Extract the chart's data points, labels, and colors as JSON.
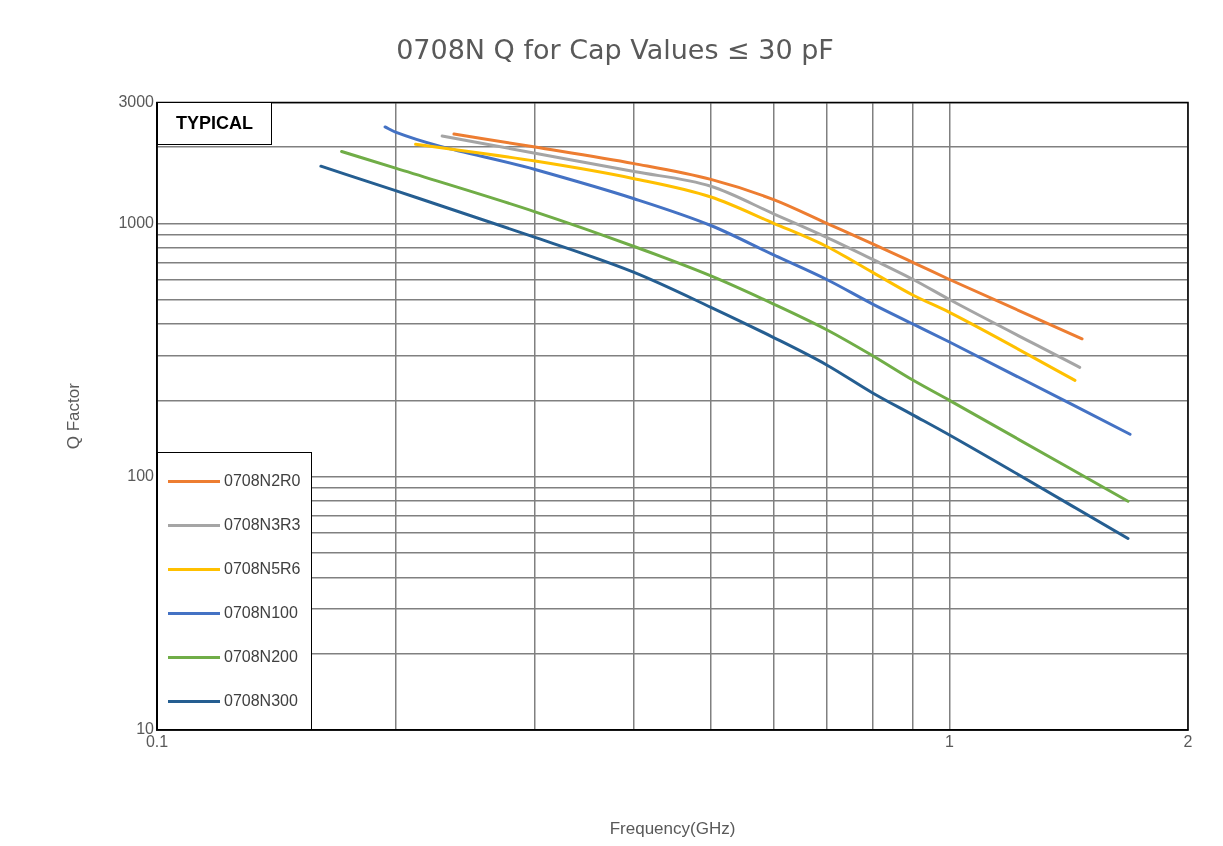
{
  "chart_data": {
    "type": "line",
    "title": "0708N Q for Cap Values ≤ 30 pF",
    "xlabel": "Frequency(GHz)",
    "ylabel": "Q Factor",
    "log": "xy",
    "grid": true,
    "legend": "bottom left",
    "marker": "none",
    "line_style": "solid",
    "annotations": [
      "TYPICAL"
    ],
    "xlim": [
      0.1,
      2
    ],
    "ylim": [
      10,
      3000
    ],
    "xticks": [
      0.1,
      {
        "value": 0.2,
        "label": null
      },
      {
        "value": 0.3,
        "label": null
      },
      {
        "value": 0.4,
        "label": null
      },
      {
        "value": 0.5,
        "label": null
      },
      {
        "value": 0.6,
        "label": null
      },
      {
        "value": 0.7,
        "label": null
      },
      {
        "value": 0.8,
        "label": null
      },
      {
        "value": 0.9,
        "label": null
      },
      1,
      2
    ],
    "yticks": [
      10,
      {
        "value": 20,
        "label": null
      },
      {
        "value": 30,
        "label": null
      },
      {
        "value": 40,
        "label": null
      },
      {
        "value": 50,
        "label": null
      },
      {
        "value": 60,
        "label": null
      },
      {
        "value": 70,
        "label": null
      },
      {
        "value": 80,
        "label": null
      },
      {
        "value": 90,
        "label": null
      },
      100,
      {
        "value": 200,
        "label": null
      },
      {
        "value": 300,
        "label": null
      },
      {
        "value": 400,
        "label": null
      },
      {
        "value": 500,
        "label": null
      },
      {
        "value": 600,
        "label": null
      },
      {
        "value": 700,
        "label": null
      },
      {
        "value": 800,
        "label": null
      },
      {
        "value": 900,
        "label": null
      },
      1000,
      {
        "value": 2000,
        "label": null
      },
      3000
    ],
    "series": [
      {
        "name": "0708N2R0",
        "color": "#ed7d31",
        "x": [
          0.237,
          0.3,
          0.4,
          0.5,
          0.6,
          0.7,
          0.8,
          0.9,
          1,
          1.47
        ],
        "values": [
          2250,
          2000,
          1720,
          1490,
          1240,
          1000,
          830,
          700,
          600,
          350
        ]
      },
      {
        "name": "0708N3R3",
        "color": "#a5a5a5",
        "x": [
          0.229,
          0.3,
          0.4,
          0.5,
          0.6,
          0.7,
          0.8,
          0.9,
          1,
          1.46
        ],
        "values": [
          2210,
          1890,
          1600,
          1400,
          1090,
          880,
          720,
          600,
          500,
          270
        ]
      },
      {
        "name": "0708N5R6",
        "color": "#ffc000",
        "x": [
          0.212,
          0.3,
          0.4,
          0.5,
          0.6,
          0.7,
          0.8,
          0.9,
          1,
          1.44
        ],
        "values": [
          2050,
          1760,
          1500,
          1270,
          1000,
          810,
          640,
          520,
          445,
          240
        ]
      },
      {
        "name": "0708N100",
        "color": "#4472c4",
        "x": [
          0.194,
          0.2,
          0.3,
          0.4,
          0.5,
          0.6,
          0.7,
          0.8,
          0.9,
          1,
          1.69
        ],
        "values": [
          2400,
          2290,
          1630,
          1250,
          980,
          750,
          600,
          480,
          400,
          340,
          147
        ]
      },
      {
        "name": "0708N200",
        "color": "#70ad47",
        "x": [
          0.171,
          0.2,
          0.3,
          0.4,
          0.5,
          0.6,
          0.7,
          0.8,
          0.9,
          1,
          1.68
        ],
        "values": [
          1920,
          1650,
          1110,
          810,
          620,
          480,
          380,
          300,
          240,
          200,
          80
        ]
      },
      {
        "name": "0708N300",
        "color": "#255e91",
        "x": [
          0.161,
          0.2,
          0.3,
          0.4,
          0.5,
          0.6,
          0.7,
          0.8,
          0.9,
          1,
          1.68
        ],
        "values": [
          1680,
          1345,
          880,
          640,
          466,
          354,
          276,
          214,
          175,
          146,
          57
        ]
      }
    ]
  }
}
